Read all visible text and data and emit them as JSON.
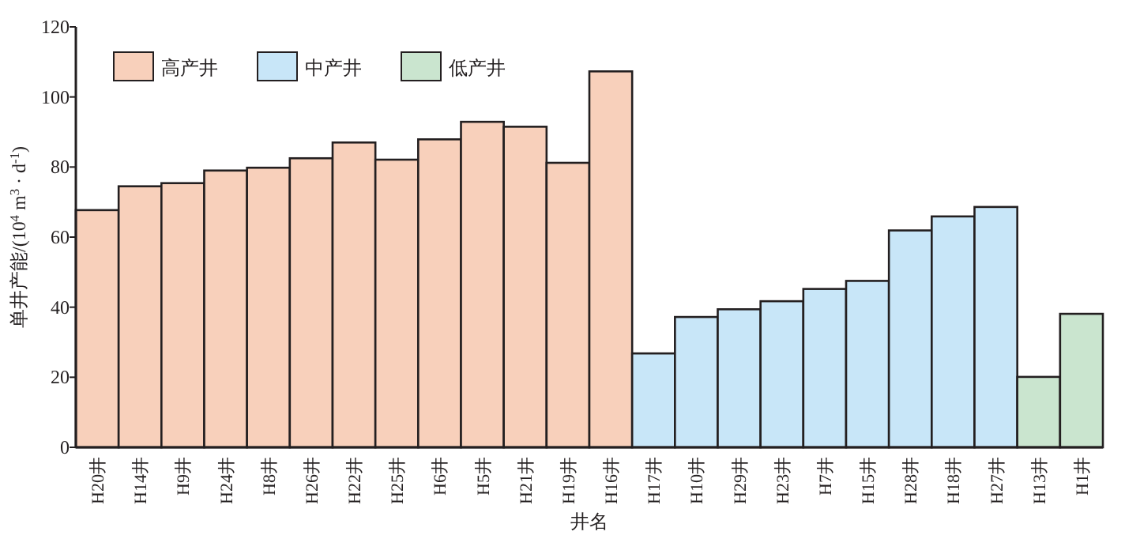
{
  "chart_data": {
    "type": "bar",
    "xlabel": "井名",
    "ylabel": "单井产能/(10$^{4}$ m$^{3}$ · d$^{-1}$)",
    "categories": [
      "H20井",
      "H14井",
      "H9井",
      "H24井",
      "H8井",
      "H26井",
      "H22井",
      "H25井",
      "H6井",
      "H5井",
      "H21井",
      "H19井",
      "H16井",
      "H17井",
      "H10井",
      "H29井",
      "H23井",
      "H7井",
      "H15井",
      "H28井",
      "H18井",
      "H27井",
      "H13井",
      "H1井"
    ],
    "stacked": true,
    "series": [
      {
        "name": "高产井",
        "color": "#f8d0bb",
        "values": [
          67.7,
          74.5,
          75.4,
          79.0,
          79.8,
          82.5,
          87.0,
          82.1,
          87.9,
          92.9,
          91.5,
          81.2,
          107.3,
          null,
          null,
          null,
          null,
          null,
          null,
          null,
          null,
          null,
          null,
          null
        ]
      },
      {
        "name": "中产井",
        "color": "#c8e6f8",
        "values": [
          null,
          null,
          null,
          null,
          null,
          null,
          null,
          null,
          null,
          null,
          null,
          null,
          null,
          26.8,
          37.2,
          39.4,
          41.7,
          45.2,
          47.5,
          61.9,
          65.9,
          68.6,
          null,
          null
        ]
      },
      {
        "name": "低产井",
        "color": "#cae5cf",
        "values": [
          null,
          null,
          null,
          null,
          null,
          null,
          null,
          null,
          null,
          null,
          null,
          null,
          null,
          null,
          null,
          null,
          null,
          null,
          null,
          null,
          null,
          null,
          20.1,
          38.1
        ]
      }
    ],
    "ylim": [
      0,
      120
    ],
    "yticks": [
      0,
      20,
      40,
      60,
      80,
      100,
      120
    ],
    "legend": "top left"
  }
}
